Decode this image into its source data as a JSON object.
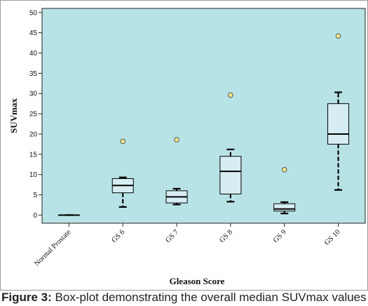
{
  "chart_data": {
    "type": "boxplot",
    "title": "",
    "xlabel": "Gleason Score",
    "ylabel": "SUVmax",
    "ylim": [
      -2,
      51
    ],
    "yticks": [
      0,
      5,
      10,
      15,
      20,
      25,
      30,
      35,
      40,
      45,
      50
    ],
    "grid": false,
    "categories": [
      "Normal Prostate",
      "GS 6",
      "GS 7",
      "GS 8",
      "GS 9",
      "GS 10"
    ],
    "boxes": [
      {
        "category": "Normal Prostate",
        "min": 0.0,
        "q1": 0.0,
        "median": 0.0,
        "q3": 0.0,
        "max": 0.0,
        "outliers": []
      },
      {
        "category": "GS 6",
        "min": 2.0,
        "q1": 5.5,
        "median": 7.3,
        "q3": 9.0,
        "max": 9.3,
        "outliers": [
          18.2
        ]
      },
      {
        "category": "GS 7",
        "min": 2.6,
        "q1": 3.0,
        "median": 4.5,
        "q3": 6.0,
        "max": 6.5,
        "outliers": [
          18.6
        ]
      },
      {
        "category": "GS 8",
        "min": 3.3,
        "q1": 5.2,
        "median": 10.8,
        "q3": 14.5,
        "max": 16.2,
        "outliers": [
          29.6
        ]
      },
      {
        "category": "GS 9",
        "min": 0.4,
        "q1": 1.0,
        "median": 1.5,
        "q3": 2.8,
        "max": 3.2,
        "outliers": [
          11.2
        ]
      },
      {
        "category": "GS 10",
        "min": 6.2,
        "q1": 17.5,
        "median": 20.0,
        "q3": 27.5,
        "max": 30.3,
        "outliers": [
          44.2
        ]
      }
    ],
    "colors": {
      "plot_background": "#b8e3e6",
      "box_fill": "#d6eef3",
      "outlier_fill": "#f3e98a",
      "line": "#000000"
    }
  },
  "caption": {
    "label": "Figure 3:",
    "text": " Box-plot demonstrating the overall median SUVmax values"
  }
}
